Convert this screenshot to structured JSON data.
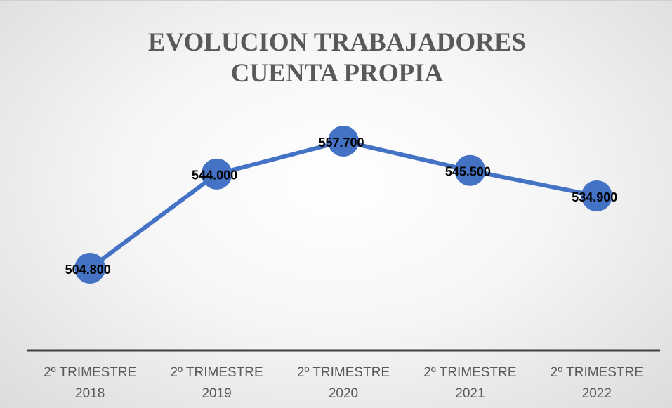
{
  "chart_data": {
    "type": "line",
    "title": "EVOLUCION TRABAJADORES CUENTA PROPIA",
    "categories": [
      "2º TRIMESTRE 2018",
      "2º TRIMESTRE 2019",
      "2º TRIMESTRE 2020",
      "2º TRIMESTRE 2021",
      "2º TRIMESTRE 2022"
    ],
    "values": [
      504800,
      544000,
      557700,
      545500,
      534900
    ],
    "value_labels": [
      "504.800",
      "544.000",
      "557.700",
      "545.500",
      "534.900"
    ],
    "color": "#4472c4"
  }
}
